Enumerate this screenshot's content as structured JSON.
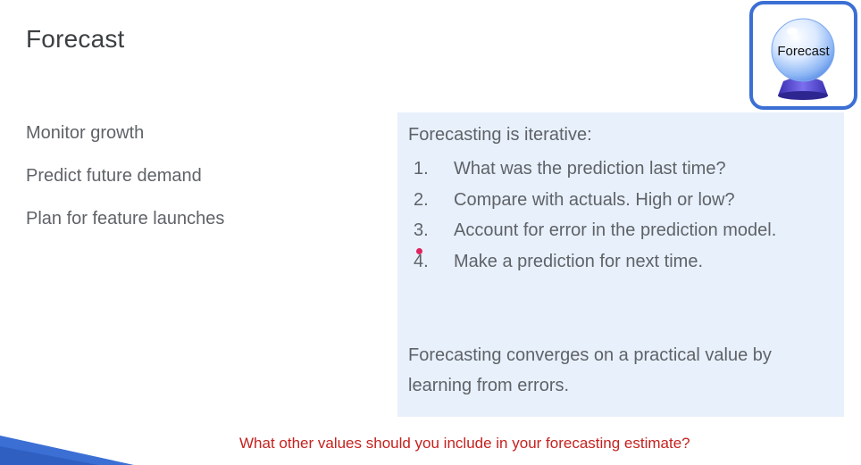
{
  "title": "Forecast",
  "badge": {
    "label": "Forecast",
    "icon": "crystal-ball-icon"
  },
  "bullets": [
    {
      "label": "Monitor growth"
    },
    {
      "label": "Predict future demand"
    },
    {
      "label": "Plan for feature launches"
    }
  ],
  "panel": {
    "heading": "Forecasting is iterative:",
    "steps": [
      {
        "number": "1.",
        "text": "What was the prediction last time?"
      },
      {
        "number": "2.",
        "text": "Compare with actuals. High or low?"
      },
      {
        "number": "3.",
        "text": "Account for error in the prediction model."
      },
      {
        "number": "4.",
        "text": "Make a prediction for next time."
      }
    ],
    "summary": "Forecasting converges on a practical value by learning from errors."
  },
  "prompt": "What other values should you include in your forecasting estimate?",
  "colors": {
    "panel_background": "#e8f0fb",
    "badge_border": "#3b6fd4",
    "prompt_text": "#c5221f",
    "pointer": "#e0245e",
    "corner_stripe": "#3b6fd4"
  }
}
